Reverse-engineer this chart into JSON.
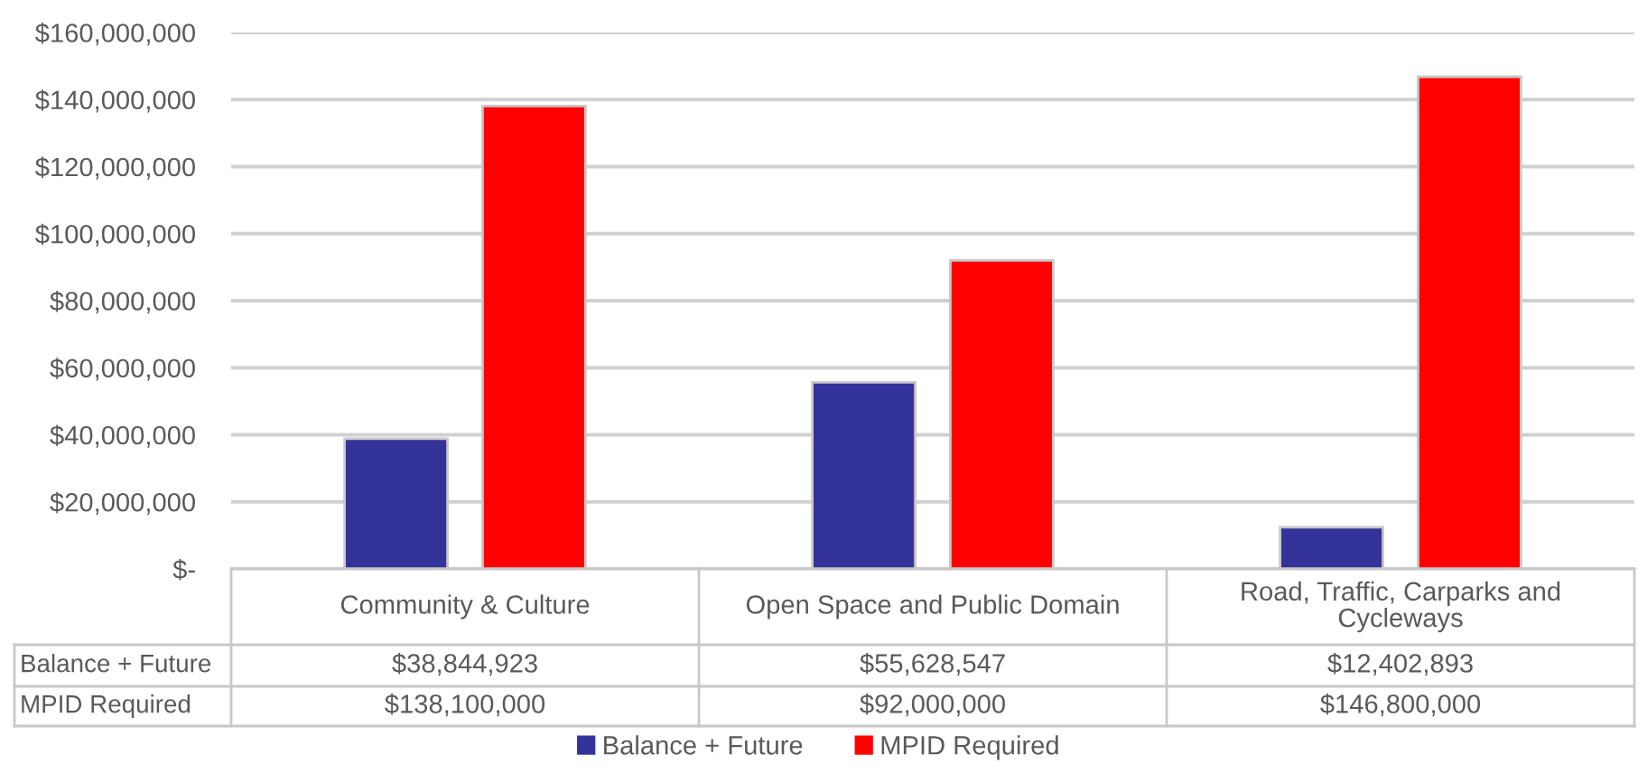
{
  "chart_data": {
    "type": "bar",
    "categories": [
      "Community & Culture",
      "Open Space and Public Domain",
      "Road, Traffic, Carparks and Cycleways"
    ],
    "series": [
      {
        "name": "Balance + Future",
        "color": "#333399",
        "values": [
          38844923,
          55628547,
          12402893
        ],
        "value_labels": [
          "$38,844,923",
          "$55,628,547",
          "$12,402,893"
        ]
      },
      {
        "name": "MPID Required",
        "color": "#ff0000",
        "values": [
          138100000,
          92000000,
          146800000
        ],
        "value_labels": [
          "$138,100,000",
          "$92,000,000",
          "$146,800,000"
        ]
      }
    ],
    "ylim": [
      0,
      160000000
    ],
    "yticks": [
      {
        "value": 0,
        "label": "$-"
      },
      {
        "value": 20000000,
        "label": "$20,000,000"
      },
      {
        "value": 40000000,
        "label": "$40,000,000"
      },
      {
        "value": 60000000,
        "label": "$60,000,000"
      },
      {
        "value": 80000000,
        "label": "$80,000,000"
      },
      {
        "value": 100000000,
        "label": "$100,000,000"
      },
      {
        "value": 120000000,
        "label": "$120,000,000"
      },
      {
        "value": 140000000,
        "label": "$140,000,000"
      },
      {
        "value": 160000000,
        "label": "$160,000,000"
      }
    ],
    "grid": "y",
    "legend": "bottom"
  }
}
